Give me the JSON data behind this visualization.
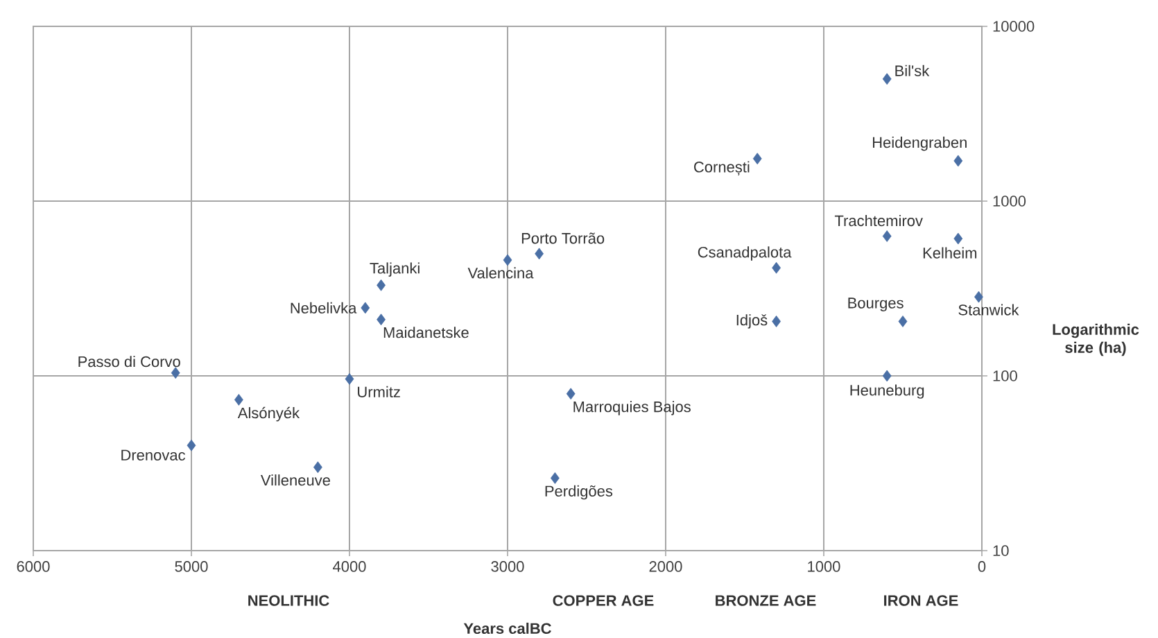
{
  "chart_data": {
    "type": "scatter",
    "xlabel": "Years calBC",
    "ylabel": "Logarithmic size (ha)",
    "log": "y",
    "grid": true,
    "marker": "diamond",
    "xlim": [
      6000,
      0
    ],
    "xticks": [
      6000,
      5000,
      4000,
      3000,
      2000,
      1000,
      0
    ],
    "ylim": [
      10,
      10000
    ],
    "yticks": [
      10,
      100,
      1000,
      10000
    ],
    "series": [
      {
        "color": "#4a6fa5",
        "x": [
          600,
          150,
          1420,
          600,
          150,
          1300,
          1300,
          500,
          20,
          600,
          2800,
          3000,
          3800,
          3900,
          3800,
          5100,
          4000,
          4700,
          5000,
          4200,
          2600,
          2700
        ],
        "values": [
          5000,
          1700,
          1750,
          630,
          610,
          415,
          205,
          205,
          283,
          100,
          500,
          460,
          330,
          245,
          210,
          104,
          96,
          73,
          40,
          30,
          79,
          26
        ]
      }
    ],
    "annotations": [
      {
        "text": "Bil'sk",
        "x": 600,
        "y": 5000
      },
      {
        "text": "Heidengraben",
        "x": 150,
        "y": 1700
      },
      {
        "text": "Cornești",
        "x": 1420,
        "y": 1750
      },
      {
        "text": "Trachtemirov",
        "x": 600,
        "y": 630
      },
      {
        "text": "Kelheim",
        "x": 150,
        "y": 610
      },
      {
        "text": "Csanadpalota",
        "x": 1300,
        "y": 415
      },
      {
        "text": "Idjoš",
        "x": 1300,
        "y": 205
      },
      {
        "text": "Bourges",
        "x": 500,
        "y": 205
      },
      {
        "text": "Stanwick",
        "x": 20,
        "y": 283
      },
      {
        "text": "Heuneburg",
        "x": 600,
        "y": 100
      },
      {
        "text": "Porto Torrão",
        "x": 2800,
        "y": 500
      },
      {
        "text": "Valencina",
        "x": 3000,
        "y": 460
      },
      {
        "text": "Taljanki",
        "x": 3800,
        "y": 330
      },
      {
        "text": "Nebelivka",
        "x": 3900,
        "y": 245
      },
      {
        "text": "Maidanetske",
        "x": 3800,
        "y": 210
      },
      {
        "text": "Passo di Corvo",
        "x": 5100,
        "y": 104
      },
      {
        "text": "Urmitz",
        "x": 4000,
        "y": 96
      },
      {
        "text": "Alsónyék",
        "x": 4700,
        "y": 73
      },
      {
        "text": "Drenovac",
        "x": 5000,
        "y": 40
      },
      {
        "text": "Villeneuve",
        "x": 4200,
        "y": 30
      },
      {
        "text": "Marroquies Bajos",
        "x": 2600,
        "y": 79
      },
      {
        "text": "Perdigões",
        "x": 2700,
        "y": 26
      },
      "NEOLITHIC",
      "COPPER AGE",
      "BRONZE AGE",
      "IRON AGE"
    ]
  }
}
